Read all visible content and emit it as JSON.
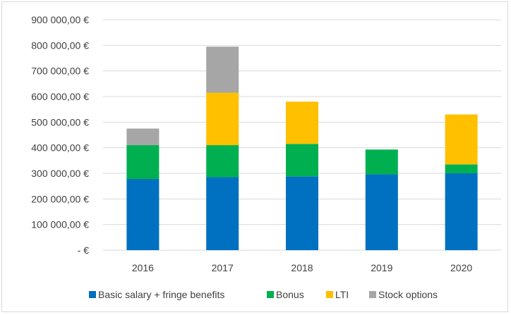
{
  "chart_data": {
    "type": "bar",
    "stacked": true,
    "categories": [
      "2016",
      "2017",
      "2018",
      "2019",
      "2020"
    ],
    "series": [
      {
        "name": "Basic salary + fringe benefits",
        "color": "#0070c0",
        "values": [
          278000,
          285000,
          288000,
          296000,
          300000
        ]
      },
      {
        "name": "Bonus",
        "color": "#00b050",
        "values": [
          132000,
          125000,
          127000,
          97000,
          35000
        ]
      },
      {
        "name": "LTI",
        "color": "#ffc000",
        "values": [
          0,
          205000,
          165000,
          0,
          195000
        ]
      },
      {
        "name": "Stock options",
        "color": "#a6a6a6",
        "values": [
          65000,
          180000,
          0,
          0,
          0
        ]
      }
    ],
    "y_ticks": [
      "-  €",
      "100 000,00 €",
      "200 000,00 €",
      "300 000,00 €",
      "400 000,00 €",
      "500 000,00 €",
      "600 000,00 €",
      "700 000,00 €",
      "800 000,00 €",
      "900 000,00 €"
    ],
    "ylim": [
      0,
      900000
    ],
    "ystep": 100000,
    "grid": true,
    "legend_position": "bottom",
    "title": "",
    "xlabel": "",
    "ylabel": ""
  }
}
